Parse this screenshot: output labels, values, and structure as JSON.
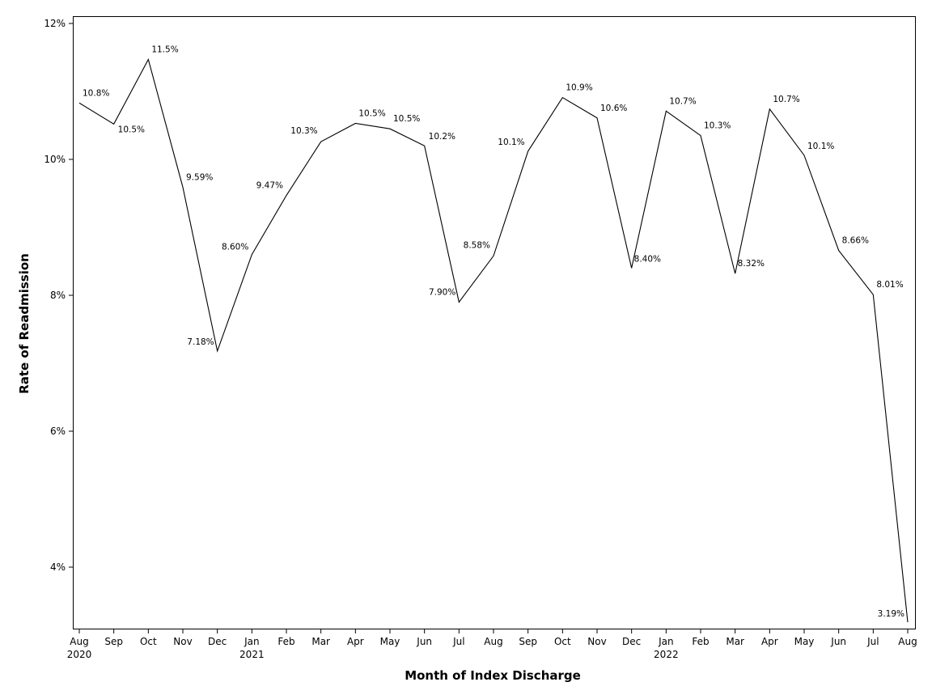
{
  "chart_data": {
    "type": "line",
    "xlabel": "Month of Index Discharge",
    "ylabel": "Rate of Readmission",
    "ylim": [
      3.1,
      12.2
    ],
    "yticks": [
      4,
      6,
      8,
      10,
      12
    ],
    "ytick_labels": [
      "4%",
      "6%",
      "8%",
      "10%",
      "12%"
    ],
    "x_tick_labels": [
      "Aug",
      "Sep",
      "Oct",
      "Nov",
      "Dec",
      "Jan",
      "Feb",
      "Mar",
      "Apr",
      "May",
      "Jun",
      "Jul",
      "Aug",
      "Sep",
      "Oct",
      "Nov",
      "Dec",
      "Jan",
      "Feb",
      "Mar",
      "Apr",
      "May",
      "Jun",
      "Jul",
      "Aug"
    ],
    "year_labels": [
      {
        "index": 0,
        "label": "2020"
      },
      {
        "index": 5,
        "label": "2021"
      },
      {
        "index": 17,
        "label": "2022"
      }
    ],
    "series": [
      {
        "name": "Rate of Readmission",
        "values": [
          10.83,
          10.52,
          11.47,
          9.59,
          7.18,
          8.6,
          9.47,
          10.26,
          10.53,
          10.45,
          10.2,
          7.9,
          8.58,
          10.12,
          10.91,
          10.61,
          8.4,
          10.71,
          10.35,
          8.32,
          10.74,
          10.06,
          8.66,
          8.01,
          3.19
        ],
        "labels": [
          "10.8%",
          "10.5%",
          "11.5%",
          "9.59%",
          "7.18%",
          "8.60%",
          "9.47%",
          "10.3%",
          "10.5%",
          "10.5%",
          "10.2%",
          "7.90%",
          "8.58%",
          "10.1%",
          "10.9%",
          "10.6%",
          "8.40%",
          "10.7%",
          "10.3%",
          "8.32%",
          "10.7%",
          "10.1%",
          "8.66%",
          "8.01%",
          "3.19%"
        ]
      }
    ]
  }
}
